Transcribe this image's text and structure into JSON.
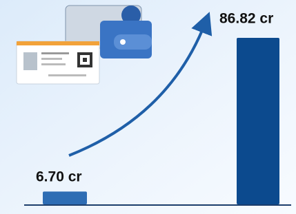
{
  "chart_data": {
    "type": "bar",
    "categories": [
      null,
      null
    ],
    "values": [
      6.7,
      86.82
    ],
    "value_labels": [
      "6.70 cr",
      "86.82 cr"
    ],
    "colors": [
      "#2e6db4",
      "#0c4a8e"
    ]
  }
}
